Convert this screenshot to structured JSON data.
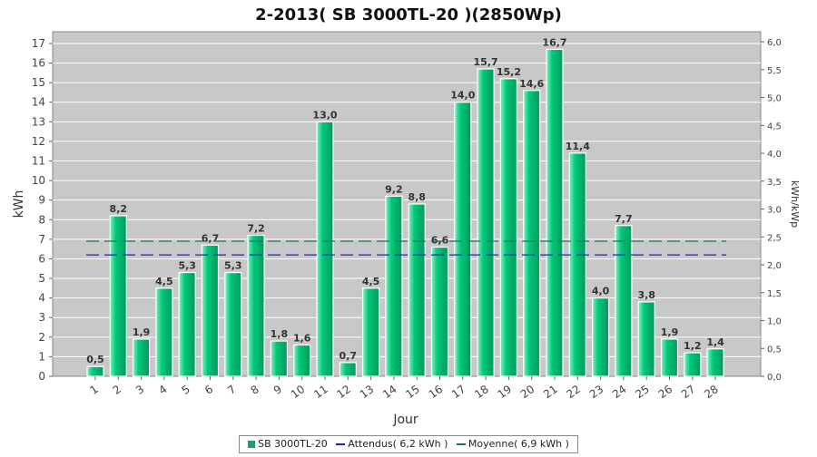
{
  "chart_data": {
    "type": "bar",
    "title": "2-2013( SB 3000TL-20 )(2850Wp)",
    "xlabel": "Jour",
    "ylabel": "kWh",
    "ylabel_right": "kWh/kWp",
    "ylim": [
      0,
      17.6
    ],
    "yticks": [
      "0",
      "1",
      "2",
      "3",
      "4",
      "5",
      "6",
      "7",
      "8",
      "9",
      "10",
      "11",
      "12",
      "13",
      "14",
      "15",
      "16",
      "17"
    ],
    "ylim_right": [
      0,
      6.18
    ],
    "yticks_right": [
      "0,0",
      "0,5",
      "1,0",
      "1,5",
      "2,0",
      "2,5",
      "3,0",
      "3,5",
      "4,0",
      "4,5",
      "5,0",
      "5,5",
      "6,0"
    ],
    "grid": true,
    "categories": [
      "1",
      "2",
      "3",
      "4",
      "5",
      "6",
      "7",
      "8",
      "9",
      "10",
      "11",
      "12",
      "13",
      "14",
      "15",
      "16",
      "17",
      "18",
      "19",
      "20",
      "21",
      "22",
      "23",
      "24",
      "25",
      "26",
      "27",
      "28"
    ],
    "series": [
      {
        "name": "SB 3000TL-20",
        "values": [
          0.5,
          8.2,
          1.9,
          4.5,
          5.3,
          6.7,
          5.3,
          7.2,
          1.8,
          1.6,
          13.0,
          0.7,
          4.5,
          9.2,
          8.8,
          6.6,
          14.0,
          15.7,
          15.2,
          14.6,
          16.7,
          11.4,
          4.0,
          7.7,
          3.8,
          1.9,
          1.2,
          1.4
        ],
        "value_labels": [
          "0,5",
          "8,2",
          "1,9",
          "4,5",
          "5,3",
          "6,7",
          "5,3",
          "7,2",
          "1,8",
          "1,6",
          "13,0",
          "0,7",
          "4,5",
          "9,2",
          "8,8",
          "6,6",
          "14,0",
          "15,7",
          "15,2",
          "14,6",
          "16,7",
          "11,4",
          "4,0",
          "7,7",
          "3,8",
          "1,9",
          "1,2",
          "1,4"
        ]
      }
    ],
    "reference_lines": [
      {
        "name": "Attendus",
        "value": 6.2,
        "color": "#1f1fd0"
      },
      {
        "name": "Moyenne",
        "value": 6.9,
        "color": "#1a7070"
      }
    ],
    "legend_position": "bottom",
    "colors": {
      "bar": "#00c878",
      "bar_light": "#7ff0c0",
      "bar_dark": "#009a5c",
      "plot_bg": "#c8c8c8",
      "grid": "#ffffff"
    }
  },
  "legend": {
    "items": [
      {
        "label": "SB 3000TL-20",
        "kind": "bar",
        "color": "#1aa06a"
      },
      {
        "label": "Attendus( 6,2 kWh )",
        "kind": "line",
        "color": "#1f1fd0"
      },
      {
        "label": "Moyenne( 6,9 kWh )",
        "kind": "line",
        "color": "#1a7070"
      }
    ]
  }
}
